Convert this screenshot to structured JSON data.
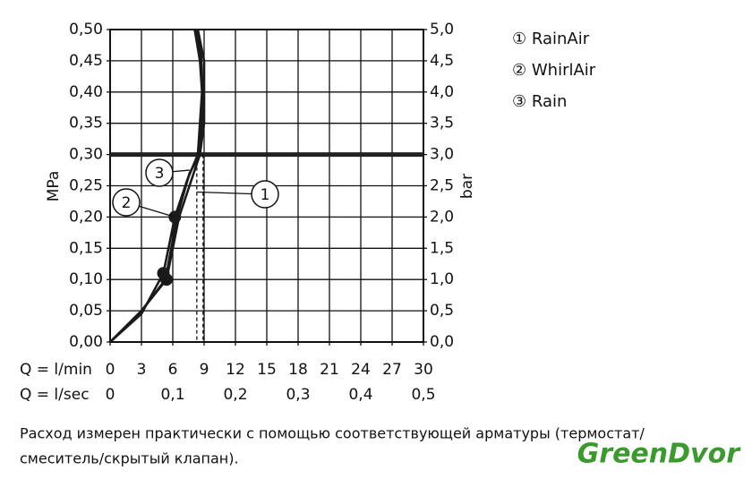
{
  "chart_data": {
    "type": "line",
    "x_row_label": "Q = l/min",
    "x2_row_label": "Q = l/sec",
    "y_label": "MPa",
    "y2_label": "bar",
    "xlim": [
      0,
      30
    ],
    "xticks": [
      0,
      3,
      6,
      9,
      12,
      15,
      18,
      21,
      24,
      27,
      30
    ],
    "x2lim": [
      0,
      0.5
    ],
    "x2ticks": [
      0,
      {
        "value": 0.1,
        "label": "0,1"
      },
      {
        "value": 0.2,
        "label": "0,2"
      },
      {
        "value": 0.3,
        "label": "0,3"
      },
      {
        "value": 0.4,
        "label": "0,4"
      },
      {
        "value": 0.5,
        "label": "0,5"
      }
    ],
    "ylim": [
      0,
      0.5
    ],
    "yticks": [
      {
        "value": 0,
        "label": "0,00"
      },
      {
        "value": 0.05,
        "label": "0,05"
      },
      {
        "value": 0.1,
        "label": "0,10"
      },
      {
        "value": 0.15,
        "label": "0,15"
      },
      {
        "value": 0.2,
        "label": "0,20"
      },
      {
        "value": 0.25,
        "label": "0,25"
      },
      {
        "value": 0.3,
        "label": "0,30"
      },
      {
        "value": 0.35,
        "label": "0,35"
      },
      {
        "value": 0.4,
        "label": "0,40"
      },
      {
        "value": 0.45,
        "label": "0,45"
      },
      {
        "value": 0.5,
        "label": "0,50"
      }
    ],
    "y2lim": [
      0,
      5
    ],
    "y2ticks": [
      {
        "value": 0,
        "label": "0,0"
      },
      {
        "value": 0.5,
        "label": "0,5"
      },
      {
        "value": 1,
        "label": "1,0"
      },
      {
        "value": 1.5,
        "label": "1,5"
      },
      {
        "value": 2,
        "label": "2,0"
      },
      {
        "value": 2.5,
        "label": "2,5"
      },
      {
        "value": 3,
        "label": "3,0"
      },
      {
        "value": 3.5,
        "label": "3,5"
      },
      {
        "value": 4,
        "label": "4,0"
      },
      {
        "value": 4.5,
        "label": "4,5"
      },
      {
        "value": 5,
        "label": "5,0"
      }
    ],
    "grid": true,
    "reference_y": 0.3,
    "dashed_x": [
      8.3,
      8.9
    ],
    "series": [
      {
        "name": "① RainAir",
        "color": "#1a1a1a",
        "x": [
          0,
          3,
          5.4,
          6.6,
          7.6,
          8.6,
          9.0,
          9.0,
          8.4
        ],
        "values": [
          0,
          0.05,
          0.1,
          0.2,
          0.25,
          0.3,
          0.35,
          0.45,
          0.5
        ]
      },
      {
        "name": "② WhirlAir",
        "color": "#1a1a1a",
        "x": [
          0,
          3,
          5.1,
          6.2,
          7.4,
          8.4,
          8.8,
          8.6,
          8.1
        ],
        "values": [
          0,
          0.045,
          0.11,
          0.2,
          0.26,
          0.3,
          0.4,
          0.45,
          0.5
        ]
      },
      {
        "name": "③ Rain",
        "color": "#1a1a1a",
        "x": [
          0,
          2.8,
          5.3,
          6.4,
          7.6,
          8.6,
          8.9,
          8.7,
          8.3
        ],
        "values": [
          0,
          0.045,
          0.1,
          0.2,
          0.27,
          0.3,
          0.38,
          0.46,
          0.5
        ]
      }
    ],
    "markers": [
      {
        "x": 5.4,
        "y": 0.1
      },
      {
        "x": 5.1,
        "y": 0.11
      },
      {
        "x": 6.2,
        "y": 0.2
      }
    ],
    "annotations": [
      {
        "text": "1",
        "x": 8.3,
        "y": 0.24
      },
      {
        "text": "2",
        "x": 6.2,
        "y": 0.2
      },
      {
        "text": "3",
        "x": 7.6,
        "y": 0.275
      }
    ],
    "footnote": [
      "Расход измерен практически с помощью соответствующей арматуры (термостат/",
      "смеситель/скрытый клапан)."
    ],
    "watermark": "GreenDvor"
  }
}
